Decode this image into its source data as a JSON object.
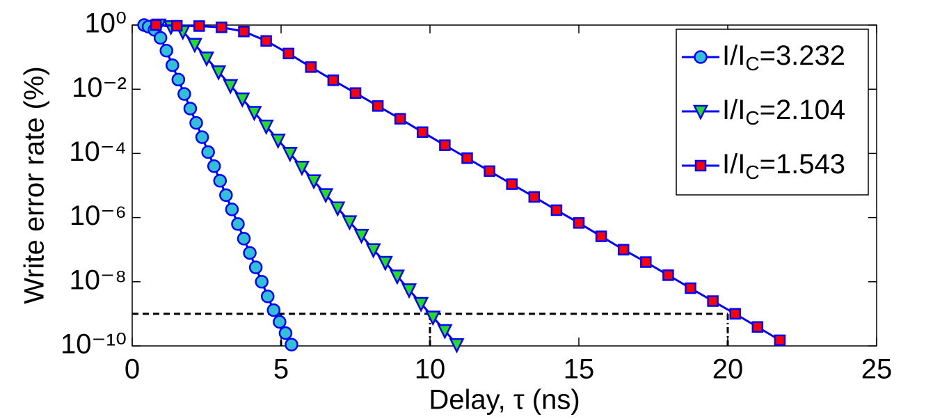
{
  "chart_data": {
    "type": "line",
    "xlabel": "Delay, τ (ns)",
    "ylabel": "Write error rate (%)",
    "xlim": [
      0,
      25
    ],
    "xticks": [
      0,
      5,
      10,
      15,
      20,
      25
    ],
    "ylim": [
      1e-10,
      1
    ],
    "yscale": "log",
    "yticks": [
      {
        "value": 1e-10,
        "label": "10⁻¹⁰"
      },
      {
        "value": 1e-08,
        "label": "10⁻⁸"
      },
      {
        "value": 1e-06,
        "label": "10⁻⁶"
      },
      {
        "value": 0.0001,
        "label": "10⁻⁴"
      },
      {
        "value": 0.01,
        "label": "10⁻²"
      },
      {
        "value": 1,
        "label": "10⁰"
      }
    ],
    "grid": false,
    "legend": "upper right",
    "line_color": "#0000ff",
    "reference_lines": {
      "y": 1e-09,
      "x": [
        5,
        10,
        20
      ]
    },
    "series": [
      {
        "name": "I/IC=3.232",
        "color": "#33bfd6",
        "marker": "circle",
        "x": [
          0.4,
          0.55,
          0.75,
          0.95,
          1.15,
          1.35,
          1.55,
          1.75,
          1.95,
          2.15,
          2.35,
          2.55,
          2.75,
          2.95,
          3.15,
          3.35,
          3.55,
          3.75,
          3.95,
          4.15,
          4.35,
          4.55,
          4.75,
          4.95,
          5.15,
          5.35
        ],
        "values": [
          1,
          0.89,
          0.71,
          0.4,
          0.16,
          0.056,
          0.02,
          0.0071,
          0.0025,
          0.00089,
          0.00032,
          0.00011,
          4e-05,
          1.4e-05,
          5e-06,
          1.8e-06,
          6.3e-07,
          2.2e-07,
          7.9e-08,
          2.8e-08,
          1e-08,
          3.5e-09,
          1.3e-09,
          5.6e-10,
          2.5e-10,
          1.1e-10
        ]
      },
      {
        "name": "I/IC=2.104",
        "color": "#22dd22",
        "marker": "triangle-down",
        "x": [
          0.9,
          1.3,
          1.7,
          2.1,
          2.5,
          2.9,
          3.3,
          3.7,
          4.1,
          4.5,
          4.9,
          5.3,
          5.7,
          6.1,
          6.5,
          6.9,
          7.3,
          7.7,
          8.1,
          8.5,
          8.9,
          9.3,
          9.7,
          10.1,
          10.5,
          10.9
        ],
        "values": [
          1,
          0.89,
          0.63,
          0.25,
          0.094,
          0.035,
          0.013,
          0.005,
          0.0019,
          0.00071,
          0.00026,
          0.0001,
          3.7e-05,
          1.4e-05,
          5.2e-06,
          2e-06,
          7.4e-07,
          2.8e-07,
          1e-07,
          4e-08,
          1.5e-08,
          5.6e-09,
          2.1e-09,
          7.9e-10,
          3e-10,
          1.1e-10
        ]
      },
      {
        "name": "I/IC=1.543",
        "color": "#ff0000",
        "marker": "square",
        "x": [
          0.8,
          1.5,
          2.25,
          3.0,
          3.75,
          4.5,
          5.25,
          6.0,
          6.75,
          7.5,
          8.25,
          9.0,
          9.75,
          10.5,
          11.25,
          12.0,
          12.75,
          13.5,
          14.25,
          15.0,
          15.75,
          16.5,
          17.25,
          18.0,
          18.75,
          19.5,
          20.25,
          21.0,
          21.75
        ],
        "values": [
          1,
          0.95,
          0.93,
          0.85,
          0.63,
          0.32,
          0.13,
          0.049,
          0.019,
          0.0076,
          0.003,
          0.0012,
          0.00046,
          0.00018,
          7.1e-05,
          2.8e-05,
          1.1e-05,
          4.4e-06,
          1.7e-06,
          6.8e-07,
          2.6e-07,
          1e-07,
          4.1e-08,
          1.6e-08,
          6.3e-09,
          2.5e-09,
          1e-09,
          3.9e-10,
          1.5e-10
        ]
      }
    ]
  }
}
